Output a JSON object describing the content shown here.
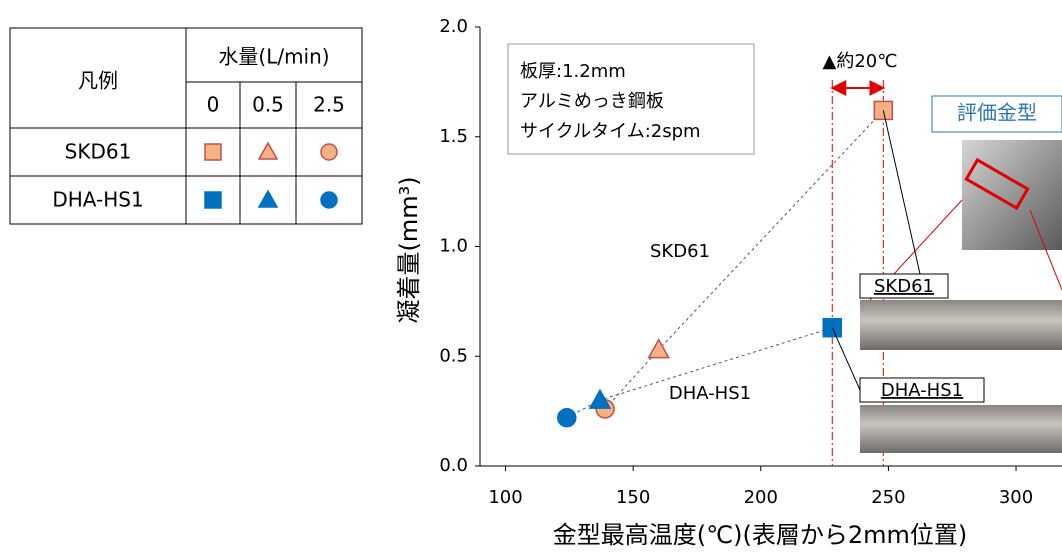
{
  "legend_table": {
    "corner_header": "凡例",
    "group_header": "水量(L/min)",
    "columns": [
      "0",
      "0.5",
      "2.5"
    ]
  },
  "chart_data": {
    "type": "scatter",
    "y_label": "凝着量(mm³)",
    "x_label": "金型最高温度(℃)(表層から2mm位置)",
    "xlim": [
      90,
      318
    ],
    "xticks": [
      100,
      150,
      200,
      250,
      300
    ],
    "ylim": [
      0,
      2
    ],
    "yticks": [
      {
        "value": 0,
        "label": "0.0"
      },
      0.5,
      {
        "value": 1,
        "label": "1.0"
      },
      1.5,
      {
        "value": 2,
        "label": "2.0"
      }
    ],
    "markers": [
      "square",
      "triangle",
      "circle"
    ],
    "series": [
      {
        "name": "SKD61",
        "color": "#f4b183",
        "edge": "#c0504d",
        "x": [
          248,
          160,
          139
        ],
        "values": [
          1.62,
          0.53,
          0.26
        ]
      },
      {
        "name": "DHA-HS1",
        "color": "#0070c0",
        "edge": "#0070c0",
        "x": [
          228,
          137,
          124
        ],
        "values": [
          0.63,
          0.3,
          0.22
        ]
      }
    ],
    "info_box": [
      "板厚:1.2mm",
      "アルミめっき鋼板",
      "サイクルタイム:2spm"
    ],
    "delta_label": "▲約20℃",
    "photo_title": "評価金型"
  }
}
